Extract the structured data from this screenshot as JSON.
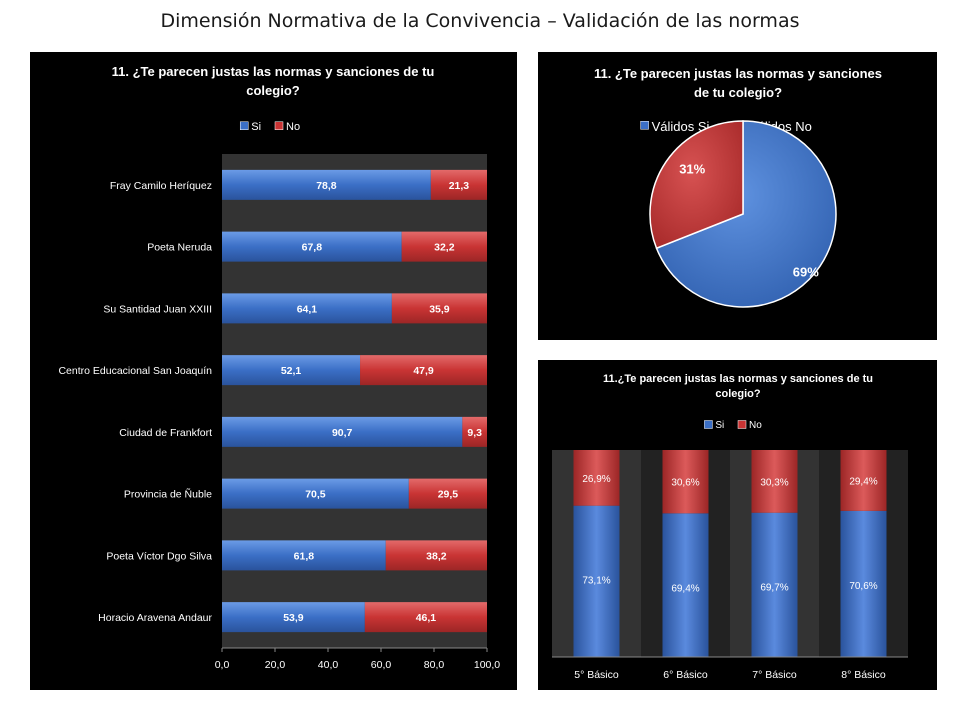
{
  "page_title": "Dimensión Normativa de la Convivencia – Validación de las normas",
  "colors": {
    "si": "#3b6fc6",
    "no": "#c93434",
    "panel_bg": "#000000",
    "plot_bg": "#333333",
    "band_dark": "#222222"
  },
  "chart_data": [
    {
      "type": "bar",
      "orientation": "horizontal",
      "stacked": true,
      "title": "11. ¿Te parecen justas las normas y sanciones de tu colegio?",
      "title_lines": [
        "11. ¿Te parecen justas las normas y sanciones de tu",
        "colegio?"
      ],
      "legend": [
        "Si",
        "No"
      ],
      "legend_position": "top",
      "categories": [
        "Fray Camilo Heríquez",
        "Poeta Neruda",
        "Su Santidad Juan XXIII",
        "Centro Educacional San Joaquín",
        "Ciudad de Frankfort",
        "Provincia de Ñuble",
        "Poeta Víctor Dgo Silva",
        "Horacio Aravena Andaur"
      ],
      "series": [
        {
          "name": "Si",
          "values": [
            78.8,
            67.8,
            64.1,
            52.1,
            90.7,
            70.5,
            61.8,
            53.9
          ],
          "labels": [
            "78,8",
            "67,8",
            "64,1",
            "52,1",
            "90,7",
            "70,5",
            "61,8",
            "53,9"
          ]
        },
        {
          "name": "No",
          "values": [
            21.3,
            32.2,
            35.9,
            47.9,
            9.3,
            29.5,
            38.2,
            46.1
          ],
          "labels": [
            "21,3",
            "32,2",
            "35,9",
            "47,9",
            "9,3",
            "29,5",
            "38,2",
            "46,1"
          ]
        }
      ],
      "xlim": [
        0,
        100
      ],
      "xticks": [
        "0,0",
        "20,0",
        "40,0",
        "60,0",
        "80,0",
        "100,0"
      ],
      "grid": false
    },
    {
      "type": "pie",
      "title": "11. ¿Te parecen justas las normas y sanciones de tu colegio?",
      "title_lines": [
        "11. ¿Te parecen justas las normas y sanciones",
        "de tu colegio?"
      ],
      "legend": [
        "Válidos Si",
        "Válidos No"
      ],
      "legend_position": "top",
      "slices": [
        {
          "name": "Válidos Si",
          "value": 69,
          "label": "69%"
        },
        {
          "name": "Válidos No",
          "value": 31,
          "label": "31%"
        }
      ]
    },
    {
      "type": "bar",
      "orientation": "vertical",
      "stacked": true,
      "title": "11.¿Te parecen justas las normas y sanciones de tu colegio?",
      "title_lines": [
        "11.¿Te parecen justas las normas y sanciones de tu",
        "colegio?"
      ],
      "legend": [
        "Si",
        "No"
      ],
      "legend_position": "top",
      "categories": [
        "5° Básico",
        "6° Básico",
        "7° Básico",
        "8° Básico"
      ],
      "series": [
        {
          "name": "Si",
          "values": [
            73.1,
            69.4,
            69.7,
            70.6
          ],
          "labels": [
            "73,1%",
            "69,4%",
            "69,7%",
            "70,6%"
          ]
        },
        {
          "name": "No",
          "values": [
            26.9,
            30.6,
            30.3,
            29.4
          ],
          "labels": [
            "26,9%",
            "30,6%",
            "30,3%",
            "29,4%"
          ]
        }
      ],
      "ylim": [
        0,
        100
      ],
      "grid": false
    }
  ]
}
